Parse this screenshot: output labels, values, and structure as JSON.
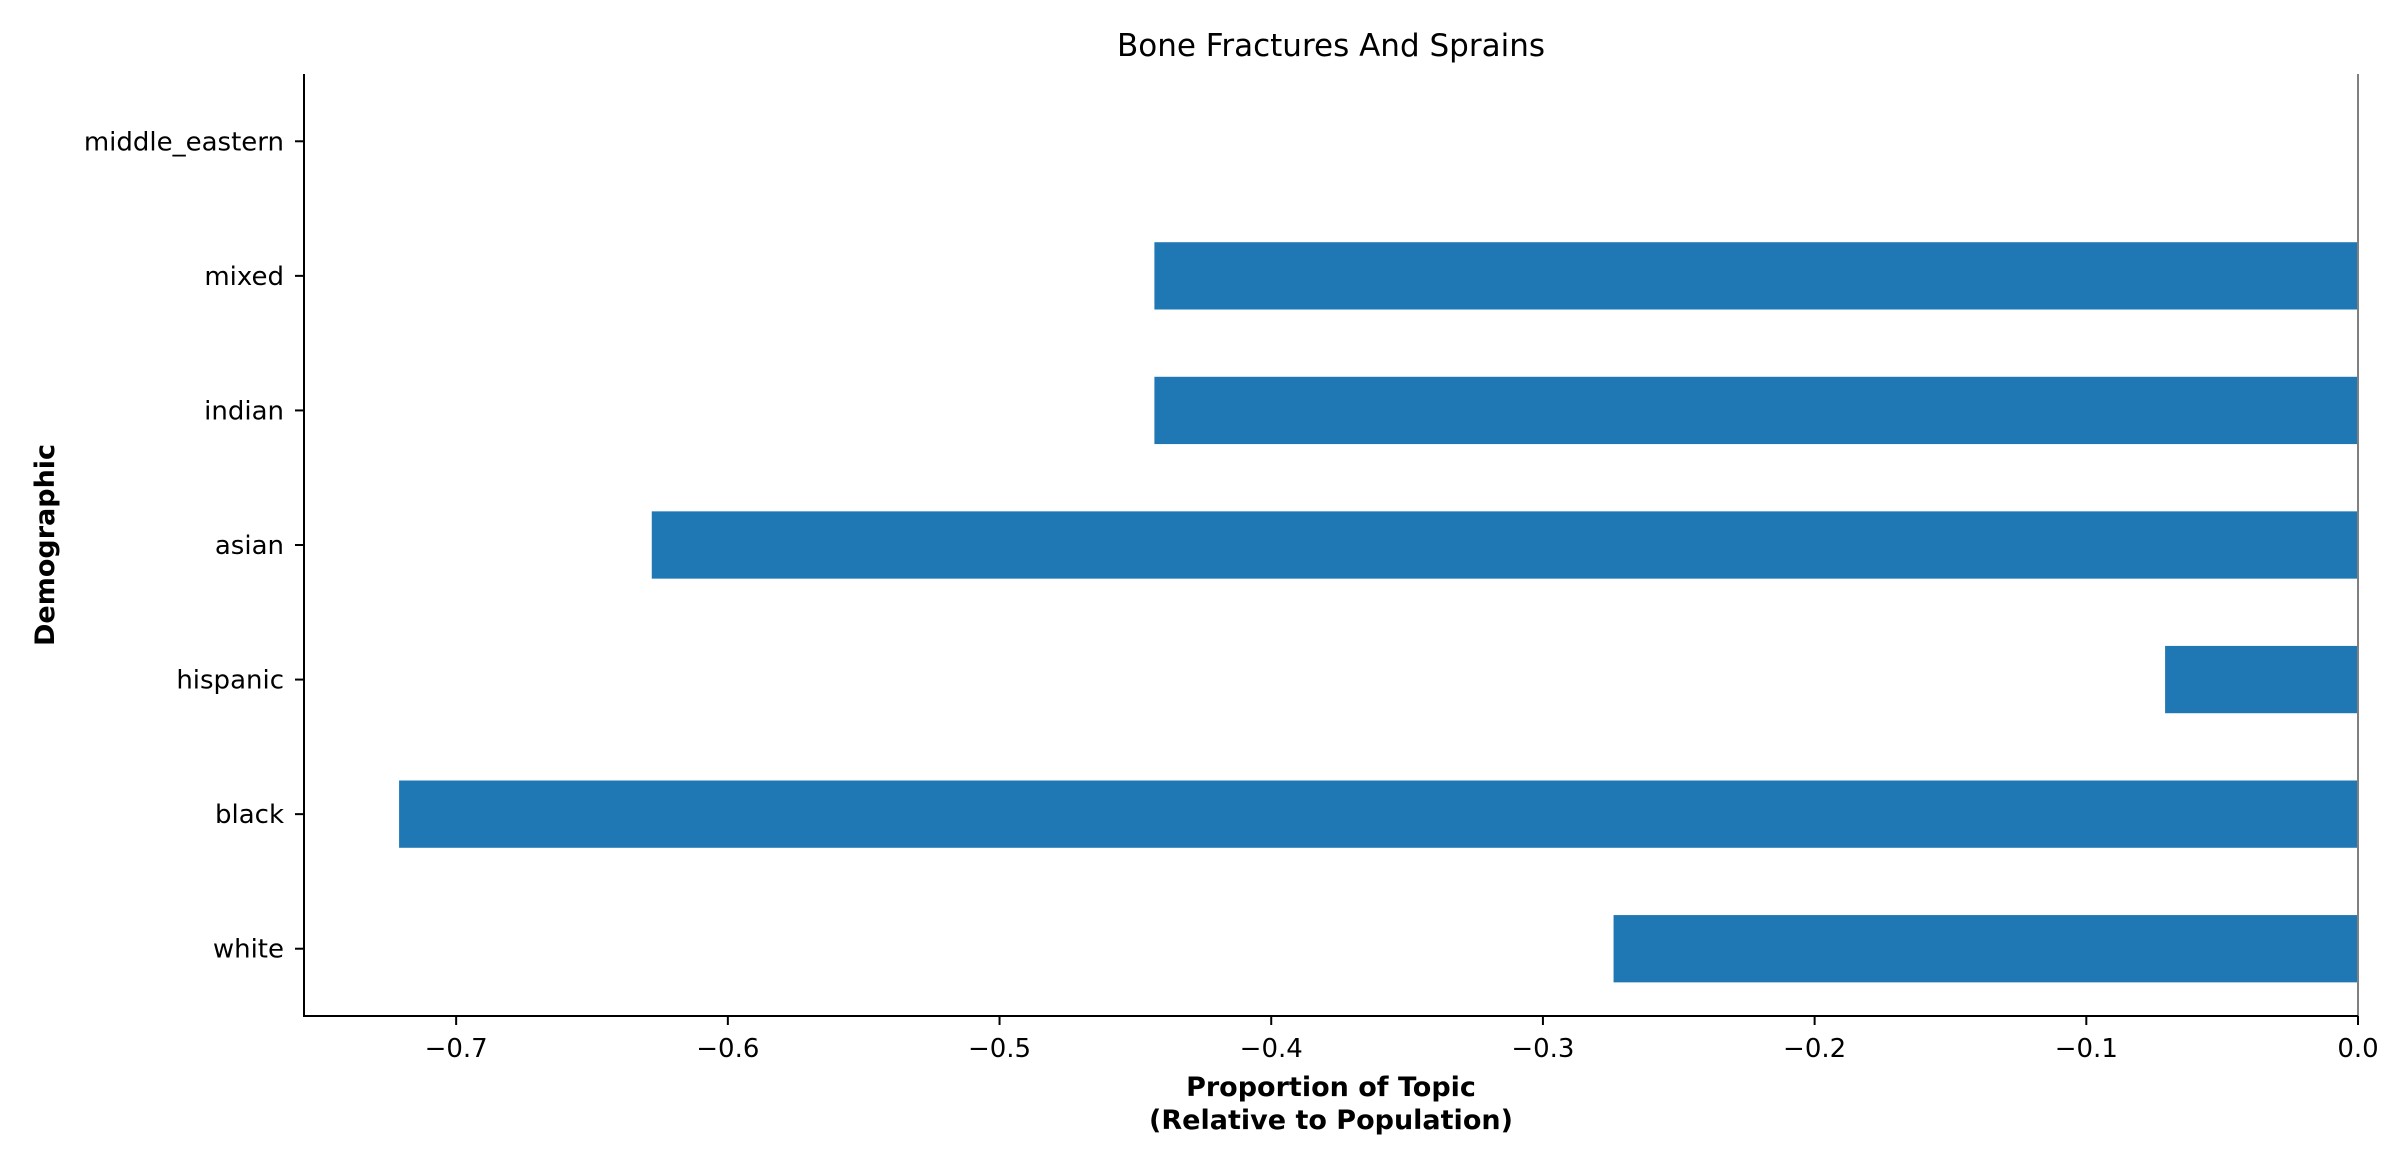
{
  "chart_data": {
    "type": "bar",
    "orientation": "horizontal",
    "title": "Bone Fractures And Sprains",
    "xlabel_lines": [
      "Proportion of Topic",
      "(Relative to Population)"
    ],
    "ylabel": "Demographic",
    "categories": [
      "white",
      "black",
      "hispanic",
      "asian",
      "indian",
      "mixed",
      "middle_eastern"
    ],
    "values": [
      -0.274,
      -0.721,
      -0.071,
      -0.628,
      -0.443,
      -0.443,
      0.0
    ],
    "xlim": [
      -0.756,
      0.0
    ],
    "xticks": [
      -0.7,
      -0.6,
      -0.5,
      -0.4,
      -0.3,
      -0.2,
      -0.1,
      0.0
    ],
    "xtick_labels": [
      "−0.7",
      "−0.6",
      "−0.5",
      "−0.4",
      "−0.3",
      "−0.2",
      "−0.1",
      "0.0"
    ],
    "bar_color": "#1f77b4",
    "grid": false,
    "zero_line": true
  }
}
